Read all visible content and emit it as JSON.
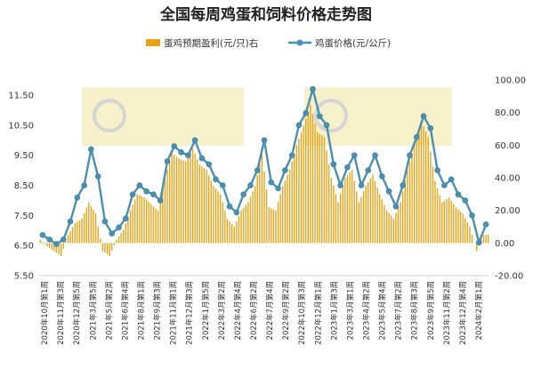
{
  "chart_data": {
    "type": "bar+line",
    "title": "全国每周鸡蛋和饲料价格走势图",
    "legend": [
      {
        "name": "蛋鸡预期盈利(元/只)右",
        "color": "#E8A317",
        "kind": "bar"
      },
      {
        "name": "鸡蛋价格(元/公斤)",
        "color": "#4A90B0",
        "kind": "line"
      }
    ],
    "legend_position": "top",
    "left_axis": {
      "min": 5.5,
      "max": 12.0,
      "ticks": [
        "5.50",
        "6.50",
        "7.50",
        "8.50",
        "9.50",
        "10.50",
        "11.50"
      ]
    },
    "right_axis": {
      "min": -20,
      "max": 100,
      "ticks": [
        "-20.00",
        "0.00",
        "20.00",
        "40.00",
        "60.00",
        "80.00",
        "100.00"
      ]
    },
    "grid": false,
    "x_tick_labels": [
      "2020年10月第1周",
      "2020年11月第3周",
      "2020年12月第5周",
      "2021年3月第5周",
      "2021年5月第2周",
      "2021年6月第4周",
      "2021年8月第1周",
      "2021年9月第3周",
      "2021年11月第1周",
      "2021年12月第3周",
      "2022年1月第5周",
      "2022年3月第2周",
      "2022年4月第4周",
      "2022年6月第2周",
      "2022年7月第4周",
      "2022年9月第2周",
      "2022年10月第3周",
      "2022年12月第1周",
      "2023年1月第3周",
      "2023年3月第1周",
      "2023年4月第2周",
      "2023年5月第4周",
      "2023年7月第2周",
      "2023年8月第3周",
      "2023年9月第5周",
      "2023年11月第2周",
      "2023年12月第4周",
      "2024年2月第1周"
    ],
    "x": [
      "2020-10",
      "2020-10",
      "2020-11",
      "2020-11",
      "2020-12",
      "2020-12",
      "2021-01",
      "2021-01",
      "2021-02",
      "2021-03",
      "2021-03",
      "2021-04",
      "2021-05",
      "2021-05",
      "2021-06",
      "2021-07",
      "2021-07",
      "2021-08",
      "2021-08",
      "2021-09",
      "2021-10",
      "2021-10",
      "2021-11",
      "2021-12",
      "2021-12",
      "2022-01",
      "2022-02",
      "2022-02",
      "2022-03",
      "2022-04",
      "2022-04",
      "2022-05",
      "2022-06",
      "2022-06",
      "2022-07",
      "2022-08",
      "2022-08",
      "2022-09",
      "2022-10",
      "2022-10",
      "2022-11",
      "2022-11",
      "2022-12",
      "2023-01",
      "2023-01",
      "2023-02",
      "2023-03",
      "2023-03",
      "2023-04",
      "2023-05",
      "2023-05",
      "2023-06",
      "2023-07",
      "2023-07",
      "2023-08",
      "2023-09",
      "2023-09",
      "2023-10",
      "2023-11",
      "2023-11",
      "2023-12",
      "2023-12",
      "2024-01",
      "2024-01",
      "2024-02"
    ],
    "series": [
      {
        "name": "鸡蛋价格(元/公斤)",
        "axis": "left",
        "values": [
          6.85,
          6.7,
          6.55,
          6.7,
          7.3,
          8.1,
          8.5,
          9.7,
          8.8,
          7.3,
          6.9,
          7.1,
          7.4,
          8.2,
          8.5,
          8.3,
          8.2,
          8.0,
          9.3,
          9.8,
          9.6,
          9.5,
          10.0,
          9.4,
          9.2,
          8.7,
          8.5,
          7.8,
          7.6,
          8.2,
          8.5,
          9.0,
          10.0,
          8.6,
          8.4,
          9.0,
          9.5,
          10.5,
          10.9,
          11.7,
          10.8,
          10.5,
          9.2,
          8.5,
          9.1,
          9.5,
          8.5,
          9.0,
          9.5,
          8.8,
          8.3,
          7.8,
          8.5,
          9.5,
          10.1,
          10.8,
          10.4,
          9.0,
          8.5,
          8.7,
          8.2,
          8.0,
          7.5,
          6.6,
          7.2
        ]
      },
      {
        "name": "蛋鸡预期盈利(元/只)右",
        "axis": "right",
        "values": [
          2,
          -2,
          -5,
          -8,
          5,
          12,
          15,
          25,
          18,
          -5,
          -8,
          2,
          8,
          20,
          30,
          28,
          24,
          20,
          40,
          55,
          52,
          50,
          58,
          48,
          45,
          35,
          30,
          15,
          10,
          20,
          25,
          35,
          55,
          22,
          20,
          35,
          45,
          60,
          72,
          85,
          68,
          65,
          40,
          25,
          40,
          45,
          25,
          35,
          42,
          30,
          20,
          15,
          25,
          45,
          60,
          75,
          65,
          38,
          25,
          28,
          22,
          18,
          10,
          -5,
          5
        ]
      }
    ]
  }
}
